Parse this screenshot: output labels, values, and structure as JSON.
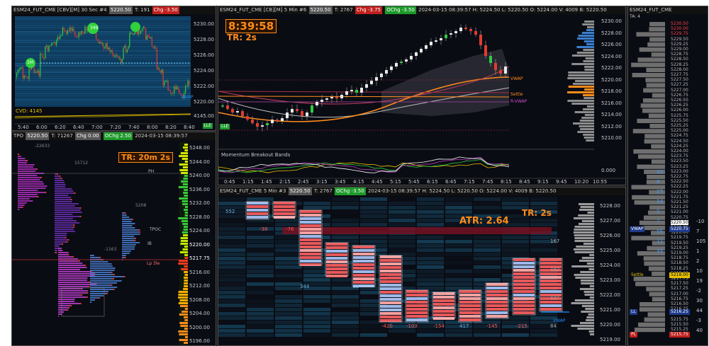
{
  "panel_a": {
    "title": "ESM24_FUT_CME [CBV][M]  30 Sec  #4",
    "price_box": "5220.50",
    "t_label": "T: 191",
    "chg_box": "Chg -3.50",
    "cvd": "CVD: 4145",
    "right_ticks": [
      "5230.00",
      "5228.00",
      "5226.00",
      "5224.00",
      "5222.00",
      "5220.00"
    ],
    "cvd_tick": "4145.00",
    "vwap": "VWAP",
    "x_ticks": [
      "5:40",
      "6:00",
      "6:20",
      "6:40",
      "7:00",
      "7:20",
      "7:40",
      "8:00",
      "8:20",
      "8:40"
    ],
    "bubbles": [
      "349",
      "1M"
    ],
    "corner": "LLE"
  },
  "panel_b": {
    "title": "ESM24_FUT_CME [CB][M]  5 Min  #6",
    "price_box": "5220.50",
    "t_label": "T: 2767",
    "chg_box": "Chg -3.75",
    "ochg_box": "OChg -3.50",
    "header_rest": "2024-03-15 08:39:57  H: 5224.50  L: 5220.50  O: 5224.00  V: 4009  B: 5220.50",
    "clock": "8:39:58",
    "tr": "TR: 2s",
    "right_ticks": [
      "5230.00",
      "5228.00",
      "5226.00",
      "5224.00",
      "5222.00",
      "5220.00",
      "5218.00",
      "5216.00",
      "5214.00",
      "5212.00",
      "5210.00"
    ],
    "levels": {
      "vwap": "VWAP",
      "settle": "Settle",
      "rvwap": "R-VWAP"
    },
    "indicator_title": "Momentum Breakout Bands",
    "indicator_tick": "0.000",
    "x_ticks": [
      "0:45",
      "1:15",
      "1:45",
      "2:15",
      "2:45",
      "3:15",
      "3:45",
      "4:15",
      "4:45",
      "5:15",
      "5:45",
      "6:15",
      "6:45",
      "7:15",
      "7:45",
      "8:15",
      "8:45",
      "9:15",
      "9:45",
      "10:20",
      "10:55"
    ],
    "corner": "LLE"
  },
  "panel_c": {
    "title": "TPO",
    "price_box": "5220.50",
    "t_label": "T: 71267",
    "chg_box": "Chg 0.00",
    "ochg_box": "OChg 2.50",
    "date": "2024-03-15 08:39:57",
    "tr": "TR: 20m 2s",
    "right_ticks": [
      "5248.00",
      "5244.00",
      "5240.00",
      "5236.00",
      "5232.00",
      "5228.00",
      "5224.00",
      "5220.00",
      "5217.75",
      "5216.00",
      "5212.00",
      "5208.00",
      "5204.00",
      "5200.00",
      "5196.00"
    ],
    "labels": {
      "ph": "PH",
      "tpoc": "TPOC",
      "ib": "IB",
      "lp": "Lp 3le"
    },
    "small_counts": [
      "-22633",
      "15712",
      "-1163",
      "5208"
    ]
  },
  "panel_d": {
    "title": "ESM24_FUT_CME",
    "interval": "5 Min  #3",
    "price_box": "5220.50",
    "t_label": "T: 2767",
    "ochg_box": "OChg -3.50",
    "header_rest": "2024-03-15 08:39:57  H: 5224.50  L: 5220.50  O: 5224.00  V: 4009  B: 5220.50",
    "atr": "ATR: 2.64",
    "tr": "TR: 2s",
    "right_ticks": [
      "5228.00",
      "5227.00",
      "5226.00",
      "5225.00",
      "5224.00",
      "5223.00",
      "5222.00",
      "5221.00",
      "5220.00",
      "5219.00"
    ],
    "deltas_top": [
      "552",
      "-38",
      "-76"
    ],
    "deltas_bottom": [
      "344",
      "25",
      "-420",
      "-103",
      "-154",
      "417",
      "-145",
      "-215"
    ],
    "side_counts": [
      "167",
      "182",
      "127",
      "84"
    ],
    "vwap": "VWAP"
  },
  "panel_e": {
    "title": "ESM24_FUT_CME",
    "ta_label": "TA: 4",
    "prices": [
      "5230.50",
      "5230.00",
      "5229.75",
      "5229.50",
      "5229.25",
      "5229.00",
      "5228.75",
      "5228.50",
      "5228.25",
      "5228.00",
      "5227.75",
      "5227.50",
      "5227.25",
      "5227.00",
      "5226.75",
      "5226.50",
      "5226.25",
      "5226.00",
      "5225.75",
      "5225.50",
      "5225.25",
      "5225.00",
      "5224.75",
      "5224.50",
      "5224.25",
      "5224.00",
      "5223.75",
      "5223.50",
      "5223.25",
      "5223.00",
      "5222.75",
      "5222.50",
      "5222.25",
      "5222.00",
      "5221.75",
      "5221.50",
      "5221.25",
      "5221.00",
      "5220.75",
      "5220.50",
      "5220.25",
      "5220.00",
      "5219.75",
      "5219.50",
      "5219.25",
      "5219.00",
      "5218.75",
      "5218.50",
      "5218.25",
      "5218.00",
      "5217.75",
      "5217.50",
      "5217.25",
      "5217.00",
      "5216.75",
      "5216.50",
      "5216.25",
      "5216.00",
      "5215.75",
      "5215.50",
      "5215.25"
    ],
    "last_price": "5220.50",
    "vwap_label": "VWAP",
    "vwap_price": "5220.75",
    "settle_label": "Settle",
    "settle_price": "5218.00",
    "lo_label": "LL",
    "lo_price": "5216.25",
    "pl_label": "PL",
    "pl_price": "5215.75",
    "bid_sizes": [
      "24",
      "8",
      "27",
      "14",
      "5",
      "7",
      "55",
      "12",
      "33"
    ],
    "ask_sizes": [
      "-10",
      "7",
      "105",
      "1",
      "2",
      "10",
      "19",
      "-2",
      "30",
      "44",
      "-3",
      "40"
    ]
  },
  "colors": {
    "bull": "#2ecc40",
    "bear": "#e23b2e",
    "orange": "#ff8c1a",
    "panel_bg": "#0a0c14",
    "accent_red": "#c0201d",
    "accent_green": "#1d9a2b"
  }
}
